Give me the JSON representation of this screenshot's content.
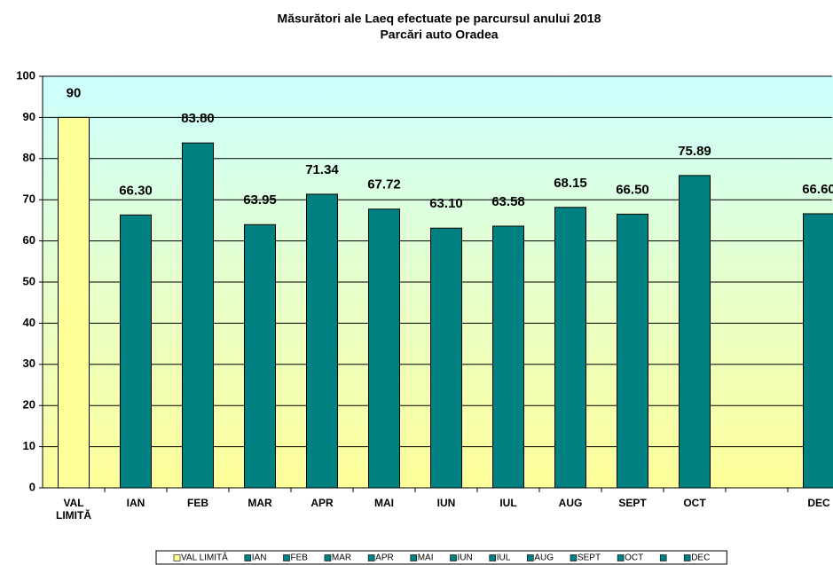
{
  "chart_data": {
    "type": "bar",
    "title": "Măsurători ale Laeq efectuate pe parcursul anului 2018",
    "subtitle": "Parcări auto Oradea",
    "categories": [
      "VAL LIMITĂ",
      "IAN",
      "FEB",
      "MAR",
      "APR",
      "MAI",
      "IUN",
      "IUL",
      "AUG",
      "SEPT",
      "OCT",
      null,
      "DEC"
    ],
    "values": [
      90,
      66.3,
      83.8,
      63.95,
      71.34,
      67.72,
      63.1,
      63.58,
      68.15,
      66.5,
      75.89,
      null,
      66.6
    ],
    "value_labels": [
      "90",
      "66.30",
      "83.80",
      "63.95",
      "71.34",
      "67.72",
      "63.10",
      "63.58",
      "68.15",
      "66.50",
      "75.89",
      null,
      "66.60"
    ],
    "colors": [
      "#ffff99",
      "#008080",
      "#008080",
      "#008080",
      "#008080",
      "#008080",
      "#008080",
      "#008080",
      "#008080",
      "#008080",
      "#008080",
      "#008080",
      "#008080"
    ],
    "ylim": [
      0,
      100
    ],
    "yticks": [
      0,
      10,
      20,
      30,
      40,
      50,
      60,
      70,
      80,
      90,
      100
    ],
    "grid": true,
    "legend": "bottom"
  }
}
